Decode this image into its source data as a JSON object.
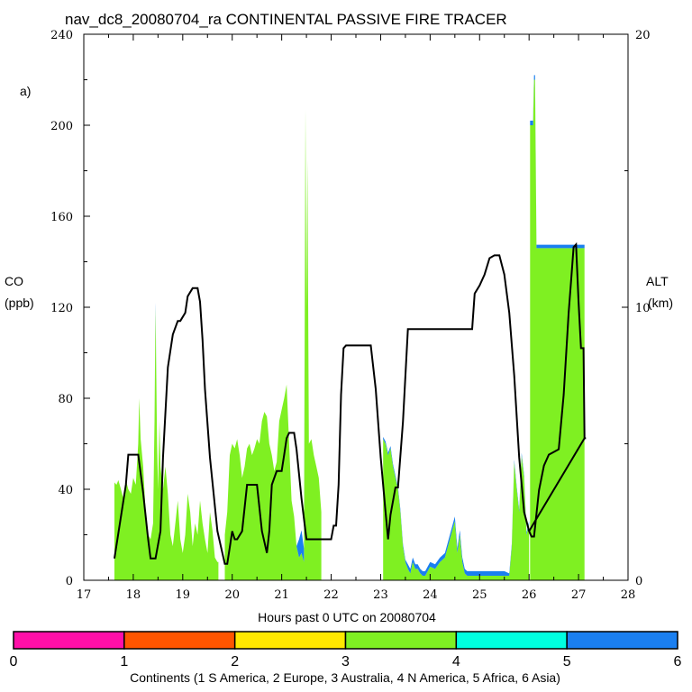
{
  "chart_data": {
    "type": "area",
    "title": "nav_dc8_20080704_ra CONTINENTAL PASSIVE FIRE TRACER",
    "panel_label": "a)",
    "xlabel": "Hours past 0 UTC on 20080704",
    "ylabel_left": [
      "CO",
      "(ppb)"
    ],
    "ylabel_right": [
      "ALT",
      "(km)"
    ],
    "xlim": [
      17,
      28
    ],
    "ylim_left": [
      0,
      240
    ],
    "ylim_right": [
      0,
      20
    ],
    "x_ticks": [
      "17",
      "18",
      "19",
      "20",
      "21",
      "22",
      "23",
      "24",
      "25",
      "26",
      "27",
      "28"
    ],
    "y_ticks_left": [
      "0",
      "40",
      "80",
      "120",
      "160",
      "200",
      "240"
    ],
    "y_ticks_right": [
      "0",
      "10",
      "20"
    ],
    "co_segments": [
      {
        "x": [
          17.62,
          17.66,
          17.7,
          17.75,
          17.8,
          17.85,
          17.9,
          17.95,
          18.0,
          18.05,
          18.1,
          18.12,
          18.15,
          18.2,
          18.25,
          18.3,
          18.35,
          18.4,
          18.43,
          18.45,
          18.48,
          18.5,
          18.53,
          18.55,
          18.6,
          18.65,
          18.7,
          18.75,
          18.8,
          18.85,
          18.9,
          18.95,
          19.0,
          19.05,
          19.1,
          19.15,
          19.2,
          19.25,
          19.3,
          19.35,
          19.4,
          19.45,
          19.5,
          19.55,
          19.6,
          19.65,
          19.7,
          19.72
        ],
        "y": [
          43,
          42,
          44,
          40,
          36,
          44,
          40,
          38,
          45,
          42,
          60,
          80,
          62,
          50,
          30,
          20,
          18,
          25,
          70,
          120,
          60,
          40,
          70,
          50,
          40,
          50,
          38,
          20,
          15,
          25,
          35,
          18,
          12,
          20,
          38,
          30,
          15,
          25,
          20,
          35,
          25,
          18,
          12,
          30,
          22,
          10,
          8,
          8
        ],
        "asia": [
          0,
          0,
          0,
          0,
          0,
          0,
          0,
          0,
          0,
          0,
          0,
          0,
          0,
          0,
          0,
          0,
          0,
          0,
          0,
          2,
          0,
          0,
          0,
          0,
          0,
          0,
          0,
          0,
          0,
          0,
          0,
          0,
          0,
          0,
          0,
          0,
          0,
          0,
          0,
          0,
          0,
          0,
          0,
          0,
          0,
          0,
          0,
          0
        ]
      },
      {
        "x": [
          19.85,
          19.9,
          19.95,
          20.0,
          20.05,
          20.1,
          20.15,
          20.2,
          20.25,
          20.3,
          20.35,
          20.4,
          20.45,
          20.5,
          20.55,
          20.6,
          20.65,
          20.7,
          20.75,
          20.8,
          20.85,
          20.9,
          20.95,
          21.0,
          21.05,
          21.1,
          21.15,
          21.2,
          21.25,
          21.3,
          21.35,
          21.4,
          21.45,
          21.48,
          21.5,
          21.52,
          21.55,
          21.6,
          21.65,
          21.7,
          21.75,
          21.8
        ],
        "y": [
          20,
          30,
          55,
          60,
          58,
          62,
          55,
          45,
          50,
          58,
          60,
          55,
          58,
          62,
          60,
          70,
          74,
          72,
          60,
          55,
          48,
          52,
          70,
          75,
          80,
          86,
          60,
          35,
          28,
          15,
          10,
          12,
          8,
          207,
          120,
          185,
          60,
          62,
          55,
          50,
          45,
          30
        ],
        "asia": [
          0,
          0,
          0,
          0,
          0,
          0,
          0,
          0,
          0,
          0,
          0,
          0,
          0,
          0,
          0,
          0,
          0,
          0,
          0,
          0,
          0,
          0,
          0,
          0,
          0,
          0,
          0,
          0,
          0,
          0,
          8,
          10,
          6,
          0,
          0,
          0,
          0,
          0,
          0,
          0,
          0,
          0
        ]
      },
      {
        "x": [
          23.05,
          23.1,
          23.15,
          23.2,
          23.25,
          23.3,
          23.35,
          23.4,
          23.45,
          23.5,
          23.55,
          23.6,
          23.65,
          23.7,
          23.75,
          23.8,
          23.85,
          23.9,
          24.0,
          24.1,
          24.2,
          24.3,
          24.4,
          24.5,
          24.55,
          24.6,
          24.65,
          24.7,
          24.75,
          24.8,
          24.9,
          25.0,
          25.1,
          25.2,
          25.3,
          25.4,
          25.5,
          25.6,
          25.65,
          25.7,
          25.75,
          25.8,
          25.85,
          25.9,
          25.95,
          26.0
        ],
        "y": [
          62,
          60,
          55,
          58,
          50,
          45,
          40,
          30,
          15,
          8,
          5,
          3,
          8,
          5,
          5,
          3,
          2,
          2,
          6,
          5,
          8,
          10,
          18,
          26,
          12,
          20,
          8,
          3,
          2,
          2,
          2,
          2,
          2,
          2,
          2,
          2,
          2,
          2,
          15,
          52,
          40,
          30,
          55,
          45,
          20,
          25
        ],
        "asia": [
          1,
          1,
          1,
          1,
          1,
          1,
          1,
          1,
          1,
          1,
          2,
          2,
          2,
          2,
          2,
          2,
          2,
          2,
          2,
          2,
          2,
          2,
          2,
          2,
          2,
          2,
          2,
          2,
          2,
          2,
          2,
          2,
          2,
          2,
          2,
          2,
          2,
          1,
          1,
          1,
          1,
          1,
          1,
          1,
          1,
          1
        ]
      },
      {
        "x": [
          26.02,
          26.05,
          26.08,
          26.1,
          26.12,
          26.15,
          26.2,
          26.3,
          26.4,
          26.5,
          26.6,
          26.7,
          26.8,
          26.9,
          27.0,
          27.1,
          27.12
        ],
        "y": [
          200,
          200,
          200,
          220,
          220,
          146,
          146,
          146,
          146,
          146,
          146,
          146,
          146,
          146,
          146,
          146,
          146
        ],
        "asia": [
          2,
          2,
          2,
          2,
          2,
          1.5,
          1.5,
          1.5,
          1.5,
          1.5,
          1.5,
          1.5,
          1.5,
          1.5,
          1.5,
          1.5,
          1.5
        ]
      }
    ],
    "altitude_km": {
      "x": [
        17.62,
        17.85,
        17.9,
        18.1,
        18.2,
        18.3,
        18.35,
        18.45,
        18.55,
        18.6,
        18.7,
        18.8,
        18.9,
        18.95,
        19.05,
        19.1,
        19.2,
        19.3,
        19.35,
        19.4,
        19.45,
        19.55,
        19.7,
        19.85,
        19.9,
        19.95,
        20.0,
        20.05,
        20.1,
        20.2,
        20.3,
        20.4,
        20.5,
        20.6,
        20.7,
        20.75,
        20.8,
        20.9,
        20.95,
        21.0,
        21.05,
        21.1,
        21.15,
        21.2,
        21.25,
        21.3,
        21.4,
        21.5,
        21.55,
        21.6,
        21.7,
        21.8,
        21.9,
        22.0,
        22.05,
        22.1,
        22.15,
        22.2,
        22.25,
        22.3,
        22.4,
        22.5,
        22.6,
        22.7,
        22.8,
        22.9,
        23.0,
        23.1,
        23.15,
        23.2,
        23.3,
        23.35,
        23.45,
        23.55,
        23.65,
        23.75,
        23.85,
        23.95,
        24.0,
        24.05,
        24.1,
        24.3,
        24.5,
        24.7,
        24.8,
        24.85,
        24.9,
        25.0,
        25.1,
        25.2,
        25.3,
        25.4,
        25.5,
        25.6,
        25.7,
        25.8,
        25.9,
        26.0,
        26.05,
        26.1,
        26.2,
        26.3,
        26.4,
        26.5,
        26.6,
        26.7,
        26.8,
        26.85,
        26.9,
        26.95,
        27.0,
        27.05,
        27.1,
        27.12,
        27.15,
        27.12,
        26.0
      ],
      "y": [
        0.8,
        3.5,
        4.6,
        4.6,
        3.2,
        1.5,
        0.8,
        0.8,
        1.8,
        4.5,
        7.8,
        9.0,
        9.5,
        9.5,
        9.8,
        10.4,
        10.7,
        10.7,
        10.2,
        8.8,
        7.0,
        4.5,
        1.8,
        0.6,
        0.6,
        1.2,
        1.8,
        1.5,
        1.5,
        1.8,
        3.5,
        3.5,
        3.5,
        1.8,
        1.0,
        1.8,
        3.5,
        4.0,
        4.0,
        4.0,
        4.6,
        5.2,
        5.4,
        5.4,
        5.4,
        4.8,
        3.0,
        1.5,
        1.5,
        1.5,
        1.5,
        1.5,
        1.5,
        1.5,
        2.0,
        2.0,
        3.5,
        6.8,
        8.5,
        8.6,
        8.6,
        8.6,
        8.6,
        8.6,
        8.6,
        7.0,
        4.5,
        2.5,
        1.5,
        2.4,
        3.4,
        3.4,
        5.8,
        9.2,
        9.2,
        9.2,
        9.2,
        9.2,
        9.2,
        9.2,
        9.2,
        9.2,
        9.2,
        9.2,
        9.2,
        9.2,
        10.5,
        10.8,
        11.2,
        11.8,
        11.9,
        11.9,
        11.2,
        9.8,
        7.5,
        4.5,
        2.5,
        1.8,
        1.6,
        1.6,
        3.3,
        4.2,
        4.6,
        4.7,
        4.8,
        6.8,
        9.8,
        11.0,
        12.2,
        12.3,
        10.2,
        8.5,
        8.5,
        5.2,
        5.2,
        5.2,
        1.8
      ]
    },
    "colorbar": {
      "ticks": [
        "0",
        "1",
        "2",
        "3",
        "4",
        "5",
        "6"
      ],
      "colors": [
        "#FF0FA8",
        "#FF5500",
        "#FFE800",
        "#7FF022",
        "#00FFE0",
        "#1A7FF0"
      ],
      "label": "Continents (1 S America, 2 Europe, 3 Australia, 4 N America, 5 Africa, 6 Asia)"
    },
    "series_colors": {
      "n_america": "#7FF022",
      "asia": "#1A7FF0",
      "altitude": "#000000"
    }
  }
}
